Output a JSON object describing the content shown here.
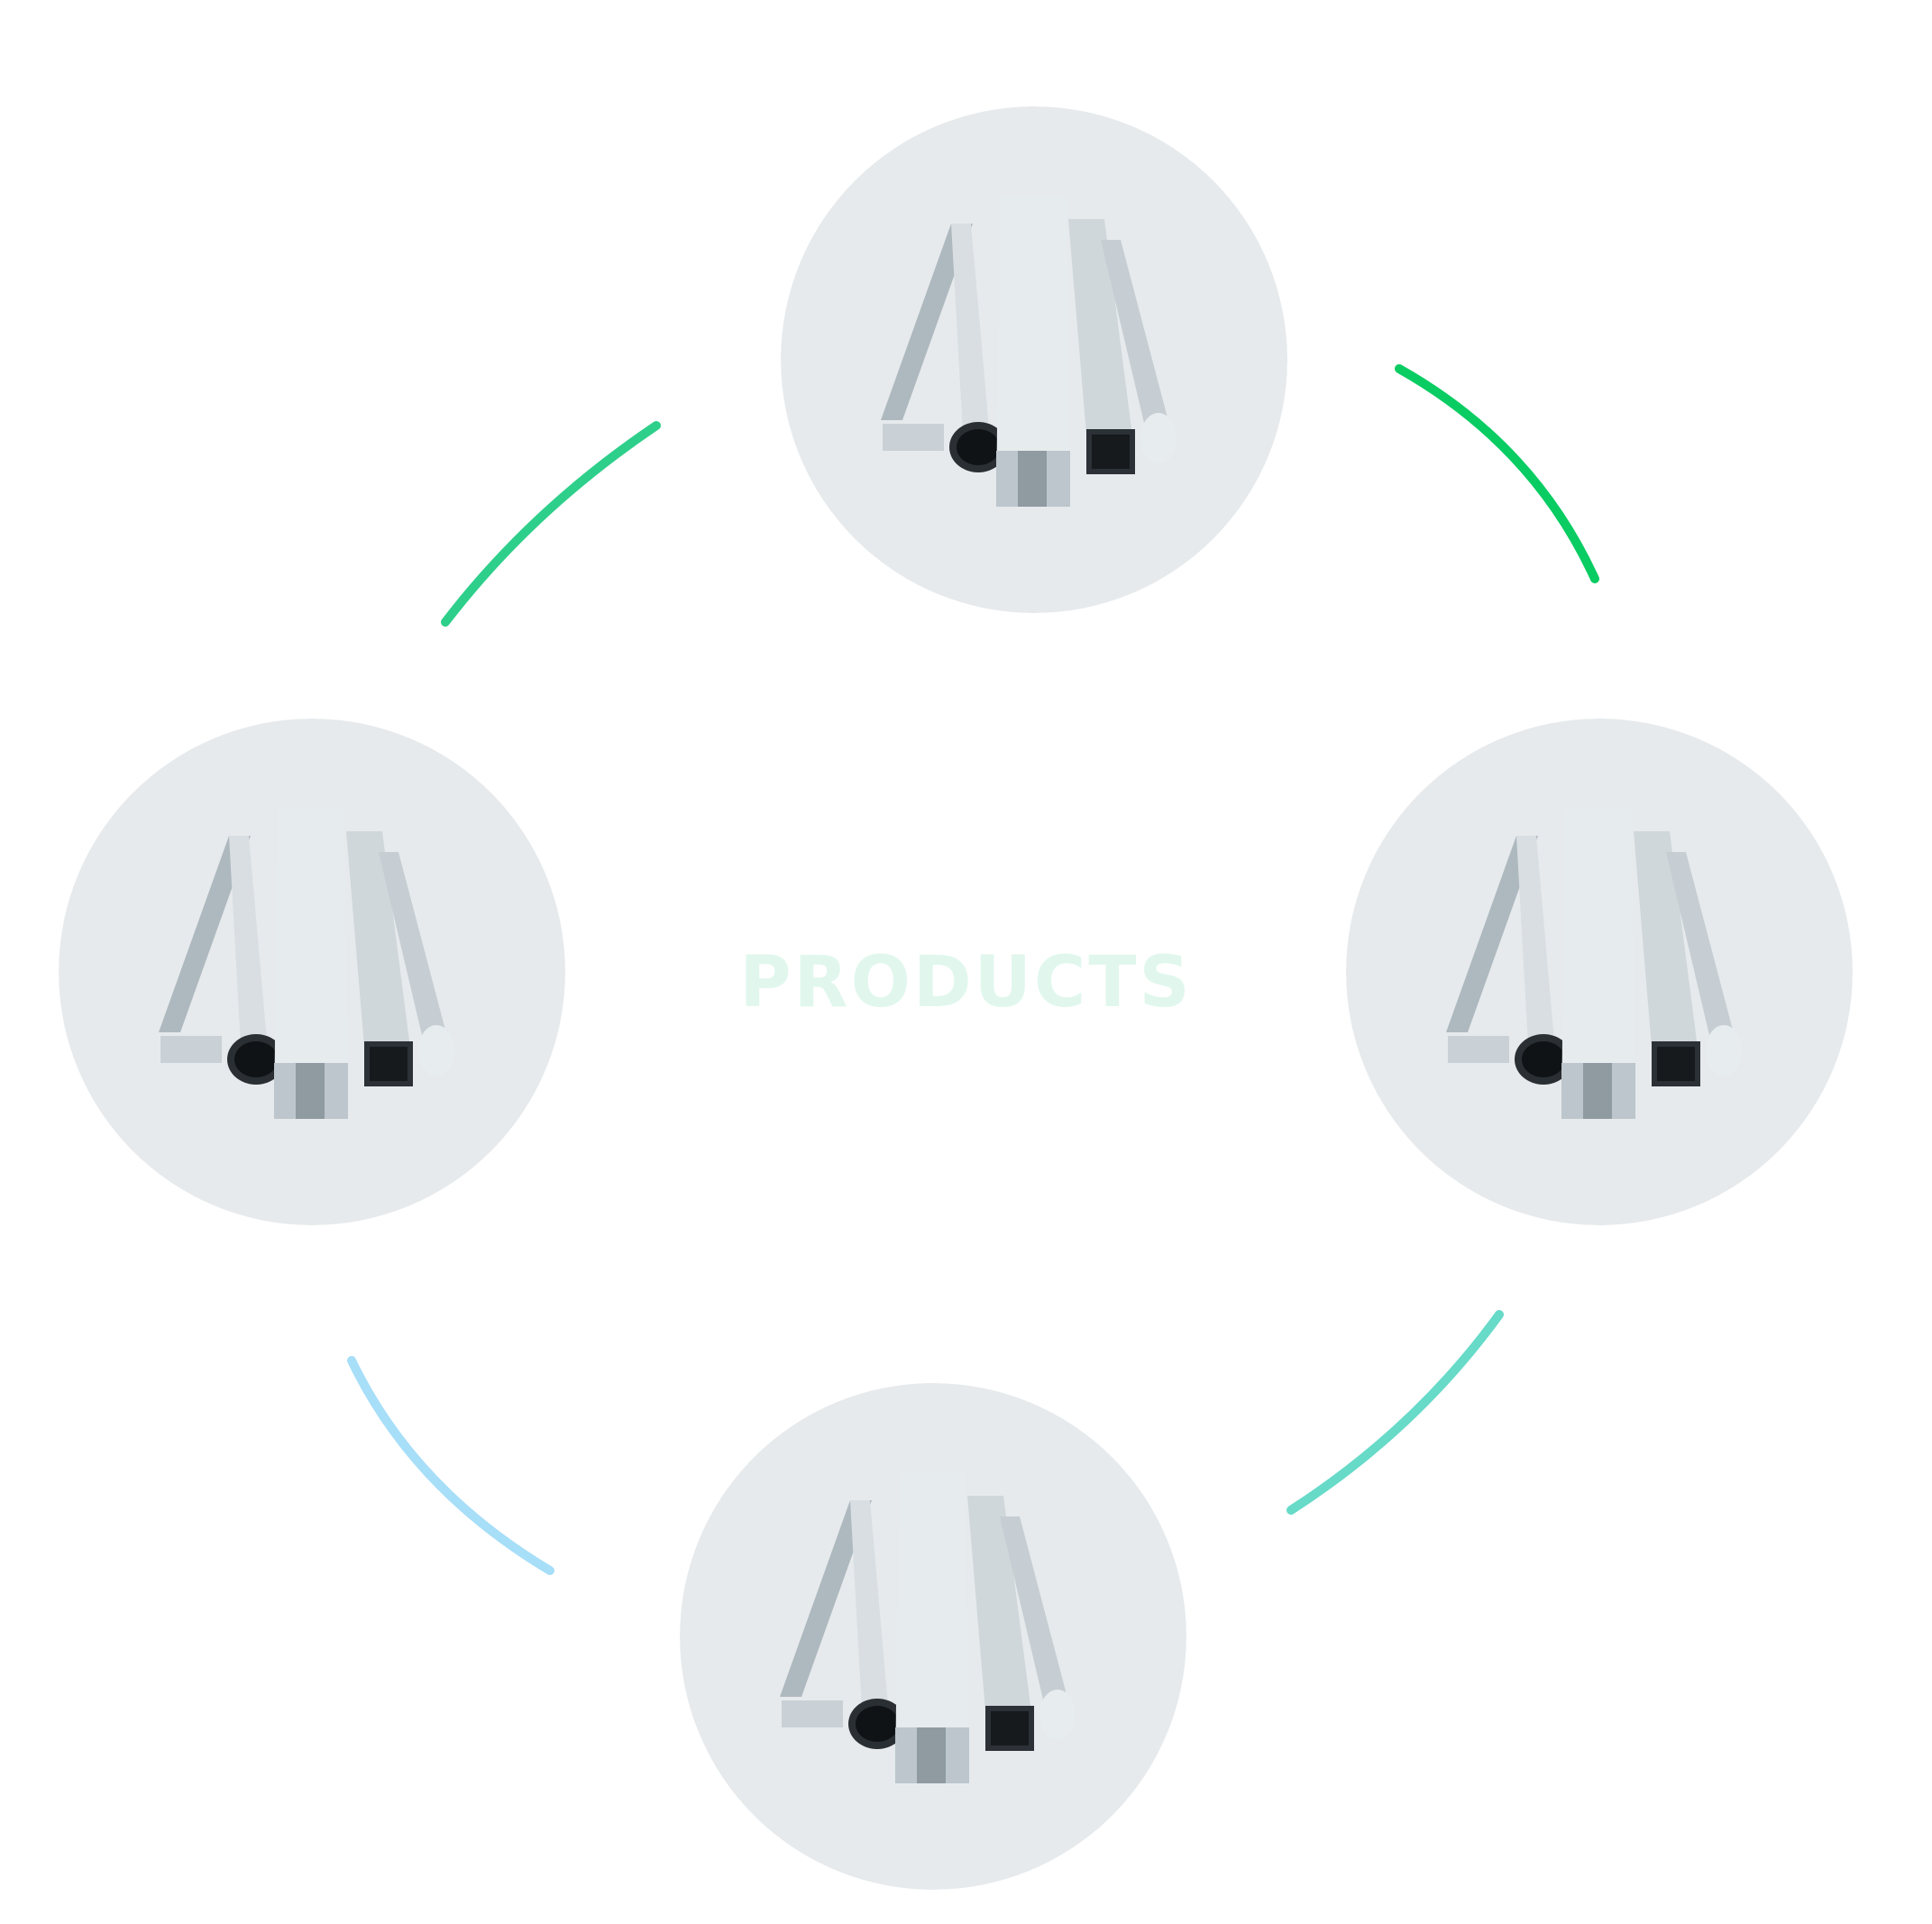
{
  "center_label": "PRODUCTS",
  "colors": {
    "background": "#ffffff",
    "node_fill": "#e6eaec",
    "center_label": "#e1f7ee",
    "arc_top_left": "#2ecf8a",
    "arc_top_right": "#09cc62",
    "arc_bottom_right": "#67dac8",
    "arc_bottom_left": "#a7def8"
  },
  "nodes": [
    {
      "id": "top",
      "image": "metal-profiles-icon"
    },
    {
      "id": "right",
      "image": "metal-profiles-icon"
    },
    {
      "id": "bottom",
      "image": "metal-profiles-icon"
    },
    {
      "id": "left",
      "image": "metal-profiles-icon"
    }
  ]
}
